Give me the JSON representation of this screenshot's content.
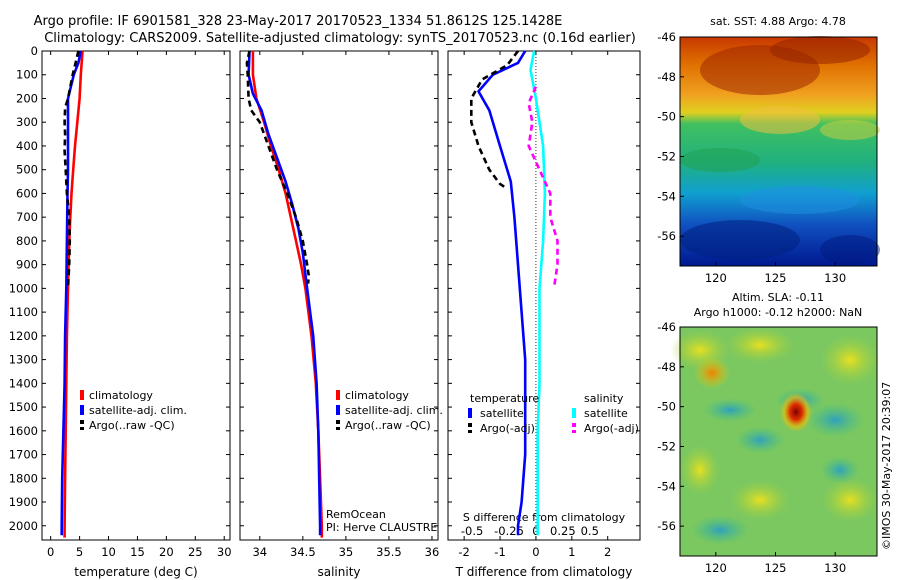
{
  "title_lines": [
    "Argo profile: IF 6901581_328 23-May-2017 20170523_1334 51.8612S 125.1428E",
    "Climatology: CARS2009. Satellite-adjusted climatology: synTS_20170523.nc (0.16d earlier)"
  ],
  "credit": "©IMOS 30-May-2017 20:39:07",
  "colors": {
    "climatology": "#ff0000",
    "satellite": "#0000ff",
    "argo": "#000000",
    "sat_salinity": "#00ffff",
    "argo_adj_salinity": "#ff00ff"
  },
  "chart_data": [
    {
      "type": "line",
      "xlabel": "temperature (deg C)",
      "ylim": [
        2060,
        0
      ],
      "xlim": [
        -1.5,
        31
      ],
      "xticks": [
        "0",
        "5",
        "10",
        "15",
        "20",
        "25",
        "30"
      ],
      "yticks": [
        "0",
        "100",
        "200",
        "300",
        "400",
        "500",
        "600",
        "700",
        "800",
        "900",
        "1000",
        "1100",
        "1200",
        "1300",
        "1400",
        "1500",
        "1600",
        "1700",
        "1800",
        "1900",
        "2000"
      ],
      "legend": [
        "climatology",
        "satellite-adj. clim.",
        "Argo(..raw -QC)"
      ],
      "series": [
        {
          "name": "climatology",
          "color": "#ff0000",
          "dash": "",
          "points": [
            [
              5.5,
              0
            ],
            [
              5.2,
              100
            ],
            [
              5.0,
              200
            ],
            [
              4.6,
              300
            ],
            [
              4.2,
              400
            ],
            [
              3.9,
              500
            ],
            [
              3.6,
              600
            ],
            [
              3.4,
              700
            ],
            [
              3.2,
              800
            ],
            [
              3.0,
              1000
            ],
            [
              2.8,
              1200
            ],
            [
              2.7,
              1400
            ],
            [
              2.6,
              1600
            ],
            [
              2.5,
              1800
            ],
            [
              2.4,
              2000
            ],
            [
              2.4,
              2050
            ]
          ]
        },
        {
          "name": "satellite-adj. clim.",
          "color": "#0000ff",
          "dash": "",
          "points": [
            [
              5.2,
              0
            ],
            [
              4.8,
              50
            ],
            [
              4.0,
              100
            ],
            [
              3.5,
              150
            ],
            [
              3.0,
              200
            ],
            [
              3.0,
              300
            ],
            [
              3.0,
              400
            ],
            [
              3.0,
              500
            ],
            [
              2.9,
              600
            ],
            [
              2.8,
              800
            ],
            [
              2.7,
              1000
            ],
            [
              2.5,
              1200
            ],
            [
              2.4,
              1400
            ],
            [
              2.2,
              1600
            ],
            [
              2.0,
              1800
            ],
            [
              1.9,
              2000
            ],
            [
              1.9,
              2040
            ]
          ]
        },
        {
          "name": "Argo(..raw -QC)",
          "color": "#000000",
          "dash": "6,4",
          "points": [
            [
              4.8,
              0
            ],
            [
              4.3,
              50
            ],
            [
              3.8,
              100
            ],
            [
              3.0,
              200
            ],
            [
              2.5,
              240
            ],
            [
              2.4,
              300
            ],
            [
              2.5,
              350
            ],
            [
              2.4,
              420
            ],
            [
              2.6,
              500
            ],
            [
              2.8,
              600
            ],
            [
              3.2,
              700
            ],
            [
              3.3,
              800
            ],
            [
              3.2,
              900
            ],
            [
              3.0,
              1000
            ]
          ]
        }
      ]
    },
    {
      "type": "line",
      "xlabel": "salinity",
      "ylim": [
        2060,
        0
      ],
      "xlim": [
        33.77,
        36.07
      ],
      "xticks": [
        "34",
        "34.5",
        "35",
        "35.5",
        "36"
      ],
      "legend": [
        "climatology",
        "satellite-adj. clim.",
        "Argo(..raw -QC)"
      ],
      "annotations": [
        "RemOcean",
        "PI: Herve CLAUSTRE"
      ],
      "series": [
        {
          "name": "climatology",
          "color": "#ff0000",
          "dash": "",
          "points": [
            [
              33.92,
              0
            ],
            [
              33.92,
              100
            ],
            [
              33.96,
              200
            ],
            [
              34.05,
              300
            ],
            [
              34.13,
              400
            ],
            [
              34.22,
              500
            ],
            [
              34.3,
              600
            ],
            [
              34.36,
              700
            ],
            [
              34.42,
              800
            ],
            [
              34.48,
              900
            ],
            [
              34.53,
              1000
            ],
            [
              34.6,
              1200
            ],
            [
              34.65,
              1400
            ],
            [
              34.68,
              1600
            ],
            [
              34.7,
              1800
            ],
            [
              34.72,
              2000
            ],
            [
              34.72,
              2050
            ]
          ]
        },
        {
          "name": "satellite-adj. clim.",
          "color": "#0000ff",
          "dash": "",
          "points": [
            [
              33.88,
              0
            ],
            [
              33.87,
              100
            ],
            [
              33.92,
              180
            ],
            [
              34.02,
              250
            ],
            [
              34.1,
              350
            ],
            [
              34.2,
              450
            ],
            [
              34.3,
              550
            ],
            [
              34.38,
              650
            ],
            [
              34.45,
              750
            ],
            [
              34.5,
              850
            ],
            [
              34.55,
              1000
            ],
            [
              34.62,
              1200
            ],
            [
              34.66,
              1400
            ],
            [
              34.68,
              1600
            ],
            [
              34.69,
              1800
            ],
            [
              34.7,
              2000
            ],
            [
              34.7,
              2040
            ]
          ]
        },
        {
          "name": "Argo(..raw -QC)",
          "color": "#000000",
          "dash": "6,4",
          "points": [
            [
              33.88,
              0
            ],
            [
              33.85,
              50
            ],
            [
              33.86,
              100
            ],
            [
              33.87,
              200
            ],
            [
              33.9,
              250
            ],
            [
              34.0,
              300
            ],
            [
              34.1,
              400
            ],
            [
              34.2,
              500
            ],
            [
              34.32,
              600
            ],
            [
              34.42,
              700
            ],
            [
              34.5,
              800
            ],
            [
              34.55,
              900
            ],
            [
              34.57,
              950
            ],
            [
              34.56,
              980
            ]
          ]
        }
      ]
    },
    {
      "type": "line",
      "xlabel": "T difference from climatology",
      "xlabel_top": "S difference from climatology",
      "ylim": [
        2060,
        0
      ],
      "xlim": [
        -2.45,
        2.9
      ],
      "xticks": [
        "-2",
        "-1",
        "0",
        "1",
        "2"
      ],
      "xticks_top": [
        "-0.5",
        "-0.25",
        "0",
        "0.25",
        "0.5"
      ],
      "zero_line": 0,
      "legend_groups": [
        {
          "heading": "temperature",
          "items": [
            "satellite",
            "Argo(-adj)"
          ]
        },
        {
          "heading": "salinity",
          "items": [
            "satellite",
            "Argo(-adj)"
          ]
        }
      ],
      "series": [
        {
          "name": "temperature satellite",
          "color": "#0000ff",
          "dash": "",
          "points": [
            [
              -0.3,
              0
            ],
            [
              -0.5,
              50
            ],
            [
              -1.2,
              100
            ],
            [
              -1.6,
              170
            ],
            [
              -1.3,
              250
            ],
            [
              -1.0,
              400
            ],
            [
              -0.7,
              550
            ],
            [
              -0.6,
              700
            ],
            [
              -0.5,
              900
            ],
            [
              -0.4,
              1100
            ],
            [
              -0.3,
              1300
            ],
            [
              -0.3,
              1500
            ],
            [
              -0.3,
              1700
            ],
            [
              -0.4,
              1900
            ],
            [
              -0.5,
              2000
            ],
            [
              -0.5,
              2040
            ]
          ]
        },
        {
          "name": "temperature Argo(-adj)",
          "color": "#000000",
          "dash": "6,4",
          "points": [
            [
              -0.5,
              0
            ],
            [
              -0.8,
              60
            ],
            [
              -1.5,
              120
            ],
            [
              -1.8,
              200
            ],
            [
              -1.8,
              300
            ],
            [
              -1.6,
              400
            ],
            [
              -1.3,
              500
            ],
            [
              -1.0,
              560
            ],
            [
              -0.8,
              580
            ]
          ]
        },
        {
          "name": "salinity satellite",
          "color": "#00ffff",
          "dash": "",
          "points": [
            [
              -0.05,
              0
            ],
            [
              -0.15,
              80
            ],
            [
              0.0,
              200
            ],
            [
              0.2,
              400
            ],
            [
              0.25,
              600
            ],
            [
              0.2,
              800
            ],
            [
              0.1,
              1000
            ],
            [
              0.1,
              1200
            ],
            [
              0.1,
              1400
            ],
            [
              0.05,
              1600
            ],
            [
              0.05,
              1800
            ],
            [
              0.05,
              2000
            ],
            [
              0.05,
              2040
            ]
          ]
        },
        {
          "name": "salinity Argo(-adj)",
          "color": "#ff00ff",
          "dash": "6,4",
          "points": [
            [
              0.0,
              150
            ],
            [
              -0.2,
              220
            ],
            [
              -0.1,
              300
            ],
            [
              -0.2,
              400
            ],
            [
              0.1,
              500
            ],
            [
              0.4,
              600
            ],
            [
              0.4,
              700
            ],
            [
              0.6,
              800
            ],
            [
              0.6,
              900
            ],
            [
              0.5,
              1000
            ]
          ]
        }
      ]
    },
    {
      "type": "heatmap",
      "title": "sat. SST: 4.88 Argo: 4.78",
      "xlim": [
        117,
        133.5
      ],
      "ylim": [
        -57.5,
        -46
      ],
      "xticks": [
        "120",
        "125",
        "130"
      ],
      "yticks": [
        "-46",
        "-48",
        "-50",
        "-52",
        "-54",
        "-56"
      ],
      "colormap": "jet"
    },
    {
      "type": "heatmap",
      "title_lines": [
        "Altim. SLA: -0.11",
        "Argo h1000: -0.12 h2000: NaN"
      ],
      "xlim": [
        117,
        133.5
      ],
      "ylim": [
        -57.5,
        -46
      ],
      "xticks": [
        "120",
        "125",
        "130"
      ],
      "yticks": [
        "-46",
        "-48",
        "-50",
        "-52",
        "-54",
        "-56"
      ],
      "colormap": "jet"
    }
  ]
}
